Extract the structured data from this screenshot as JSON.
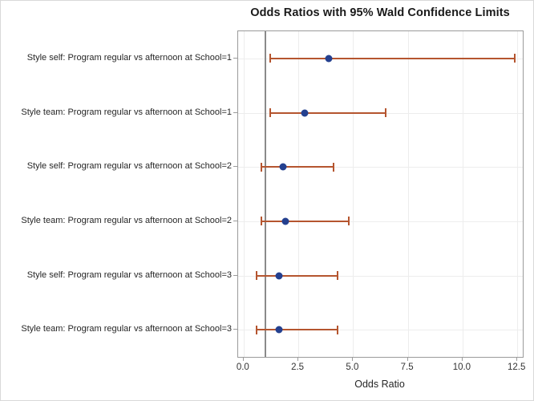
{
  "colors": {
    "marker": "#24408f",
    "errorbar": "#b5552f",
    "refline": "#8a8a8a",
    "grid": "#ededed",
    "frame": "#9b9b9b"
  },
  "chart_data": {
    "type": "scatter",
    "title": "Odds Ratios with 95% Wald Confidence Limits",
    "xlabel": "Odds Ratio",
    "xlim": [
      -0.25,
      12.75
    ],
    "x_ticks": [
      0.0,
      2.5,
      5.0,
      7.5,
      10.0,
      12.5
    ],
    "x_tick_labels": [
      "0.0",
      "2.5",
      "5.0",
      "7.5",
      "10.0",
      "12.5"
    ],
    "reference_line_x": 1.0,
    "grid": true,
    "legend": "none",
    "rows": [
      {
        "label": "Style self: Program regular vs afternoon at School=1",
        "estimate": 3.9,
        "lower": 1.2,
        "upper": 12.4
      },
      {
        "label": "Style team: Program regular vs afternoon at School=1",
        "estimate": 2.8,
        "lower": 1.2,
        "upper": 6.5
      },
      {
        "label": "Style self: Program regular vs afternoon at School=2",
        "estimate": 1.8,
        "lower": 0.8,
        "upper": 4.1
      },
      {
        "label": "Style team: Program regular vs afternoon at School=2",
        "estimate": 1.9,
        "lower": 0.8,
        "upper": 4.8
      },
      {
        "label": "Style self: Program regular vs afternoon at School=3",
        "estimate": 1.6,
        "lower": 0.6,
        "upper": 4.3
      },
      {
        "label": "Style team: Program regular vs afternoon at School=3",
        "estimate": 1.6,
        "lower": 0.6,
        "upper": 4.3
      }
    ]
  }
}
